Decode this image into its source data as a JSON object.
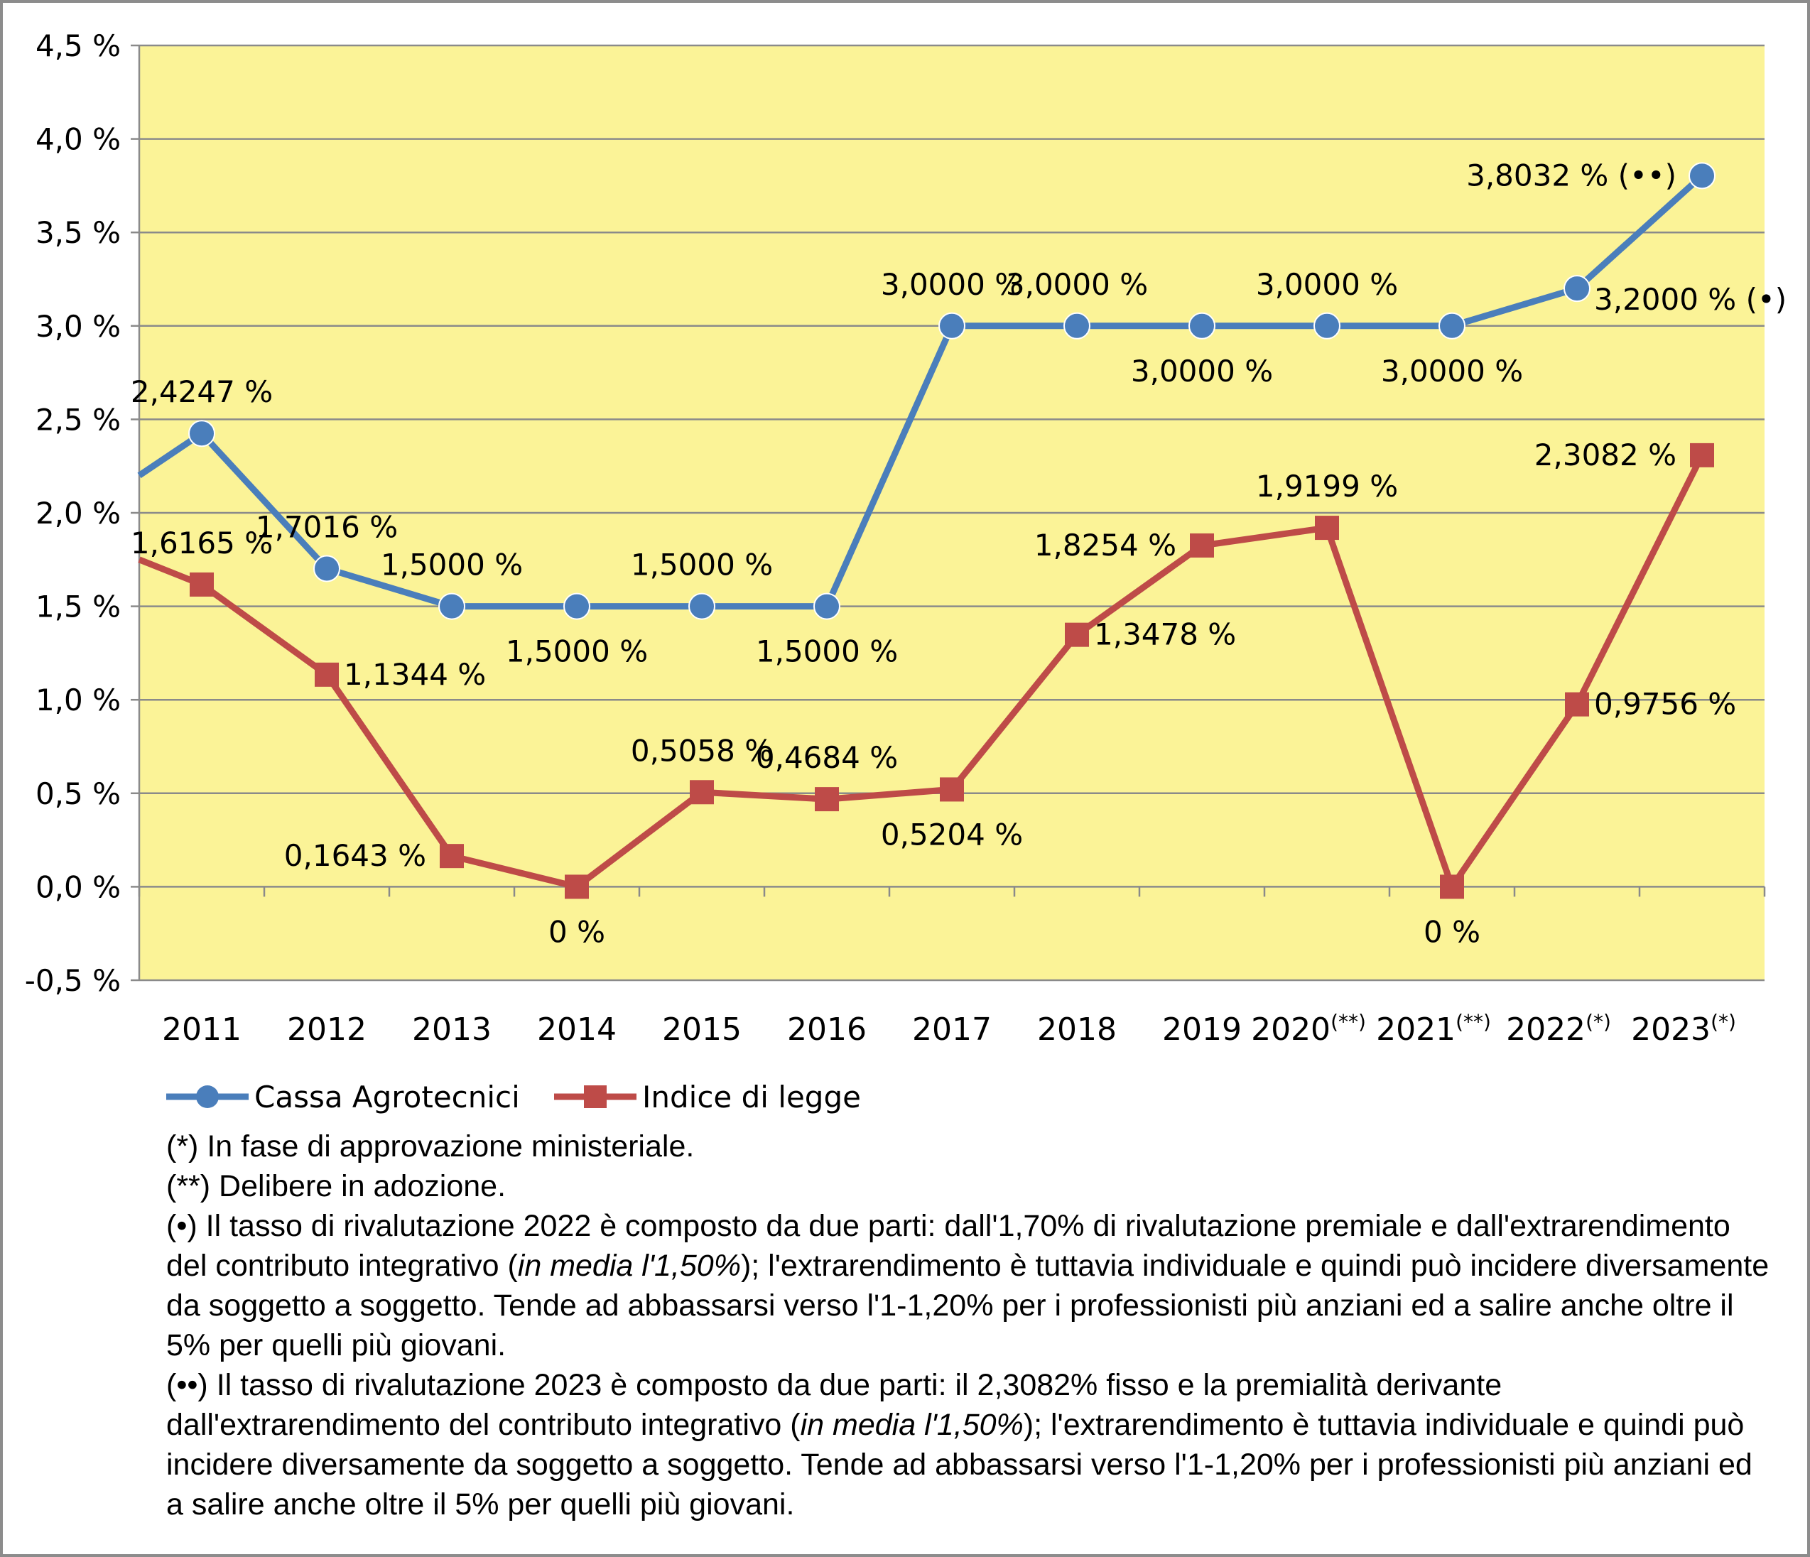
{
  "chart_data": {
    "type": "line",
    "categories": [
      "2011",
      "2012",
      "2013",
      "2014",
      "2015",
      "2016",
      "2017",
      "2018",
      "2019",
      "2020",
      "2021",
      "2022",
      "2023"
    ],
    "category_superscripts": [
      "",
      "",
      "",
      "",
      "",
      "",
      "",
      "",
      "",
      "(**)",
      "(**)",
      "(*)",
      "(*)"
    ],
    "ylim": [
      -0.5,
      4.5
    ],
    "ytick_values": [
      -0.5,
      0.0,
      0.5,
      1.0,
      1.5,
      2.0,
      2.5,
      3.0,
      3.5,
      4.0,
      4.5
    ],
    "ytick_labels": [
      "-0,5 %",
      "0,0 %",
      "0,5 %",
      "1,0 %",
      "1,5 %",
      "2,0 %",
      "2,5 %",
      "3,0 %",
      "3,5 %",
      "4,0 %",
      "4,5 %"
    ],
    "plot_background": "#fbf397",
    "grid": true,
    "legend_position": "bottom-left",
    "series": [
      {
        "name": "Cassa Agrotecnici",
        "color": "#4a7ebb",
        "marker": "circle",
        "values": [
          2.4247,
          1.7016,
          1.5,
          1.5,
          1.5,
          1.5,
          3.0,
          3.0,
          3.0,
          3.0,
          3.0,
          3.2,
          3.8032
        ],
        "labels": [
          "2,4247 %",
          "1,7016 %",
          "1,5000 %",
          "1,5000 %",
          "1,5000 %",
          "1,5000 %",
          "3,0000 %",
          "3,0000 %",
          "3,0000 %",
          "3,0000 %",
          "3,0000 %",
          "3,2000 % (•)",
          "3,8032 % (••)"
        ],
        "label_positions": [
          "above",
          "above",
          "above",
          "below",
          "above",
          "below",
          "above",
          "above",
          "below",
          "above",
          "below",
          "right",
          "left"
        ]
      },
      {
        "name": "Indice di legge",
        "color": "#be4b48",
        "marker": "square",
        "values": [
          1.6165,
          1.1344,
          0.1643,
          0.0,
          0.5058,
          0.4684,
          0.5204,
          1.3478,
          1.8254,
          1.9199,
          0.0,
          0.9756,
          2.3082
        ],
        "labels": [
          "1,6165 %",
          "1,1344 %",
          "0,1643 %",
          "0 %",
          "0,5058 %",
          "0,4684 %",
          "0,5204 %",
          "1,3478 %",
          "1,8254 %",
          "1,9199 %",
          "0 %",
          "0,9756 %",
          "2,3082 %"
        ],
        "label_positions": [
          "above",
          "right",
          "left",
          "below",
          "above",
          "above",
          "below",
          "right",
          "left",
          "above",
          "below",
          "right",
          "left"
        ]
      }
    ]
  },
  "notes": {
    "n1": "(*) In fase di approvazione ministeriale.",
    "n2": "(**) Delibere in adozione.",
    "n3a": "(•) Il tasso di rivalutazione 2022 è composto da due parti: dall'1,70% di rivalutazione premiale e dall'extrarendimento del contributo integrativo (",
    "n3i": "in media l'1,50%",
    "n3b": "); l'extrarendimento è tuttavia individuale e quindi può incidere diversamente da soggetto a soggetto. Tende ad abbassarsi verso l'1-1,20% per i professionisti più anziani ed a salire anche oltre il 5% per quelli più giovani.",
    "n4a": "(••) Il tasso di rivalutazione 2023 è composto da due parti: il 2,3082% fisso e la premialità derivante dall'extrarendimento del contributo integrativo (",
    "n4i": "in media l'1,50%",
    "n4b": "); l'extrarendimento è tuttavia individuale e quindi può incidere diversamente da soggetto a soggetto. Tende ad abbassarsi verso l'1-1,20% per i professionisti più anziani ed a salire anche oltre il 5% per quelli più giovani."
  }
}
